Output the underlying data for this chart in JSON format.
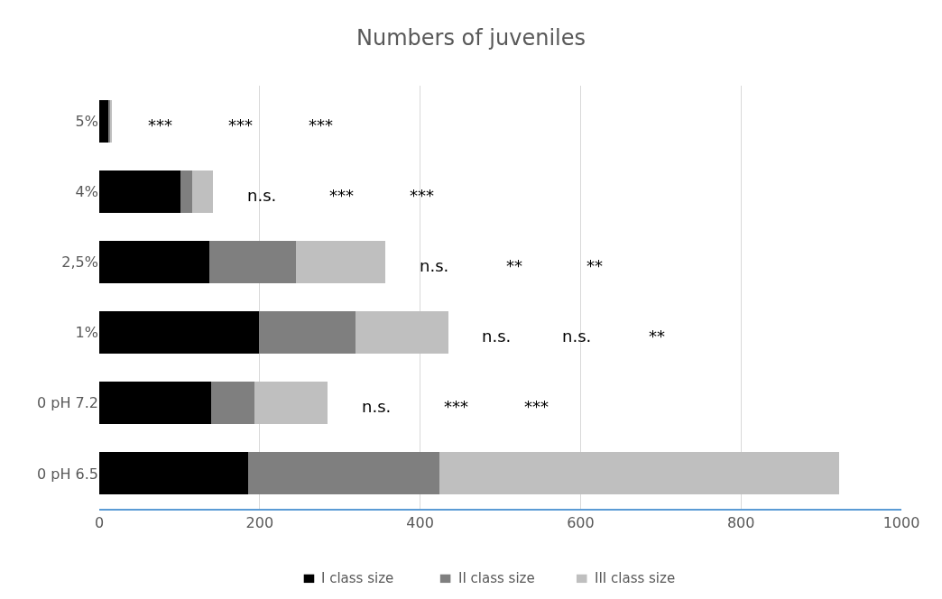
{
  "chart_data": {
    "type": "bar",
    "orientation": "horizontal",
    "stacked": true,
    "title": "Numbers of juveniles",
    "categories": [
      "5%",
      "4%",
      "2,5%",
      "1%",
      "0 pH 7.2",
      "0 pH 6.5"
    ],
    "series": [
      {
        "name": "I class size",
        "color": "#000000",
        "values": [
          12,
          101,
          137,
          199,
          140,
          186
        ]
      },
      {
        "name": "II class size",
        "color": "#7f7f7f",
        "values": [
          2,
          15,
          108,
          120,
          54,
          238
        ]
      },
      {
        "name": "III class size",
        "color": "#bfbfbf",
        "values": [
          2,
          26,
          112,
          116,
          91,
          498
        ]
      }
    ],
    "xlim": [
      0,
      1000
    ],
    "xticks": [
      0,
      200,
      400,
      600,
      800,
      1000
    ],
    "grid": "x",
    "legend": "bottom",
    "annotations": [
      "***",
      "***",
      "***",
      "n.s.",
      "***",
      "***",
      "n.s.",
      "**",
      "**",
      "n.s.",
      "n.s.",
      "**",
      "n.s.",
      "***",
      "***"
    ]
  }
}
